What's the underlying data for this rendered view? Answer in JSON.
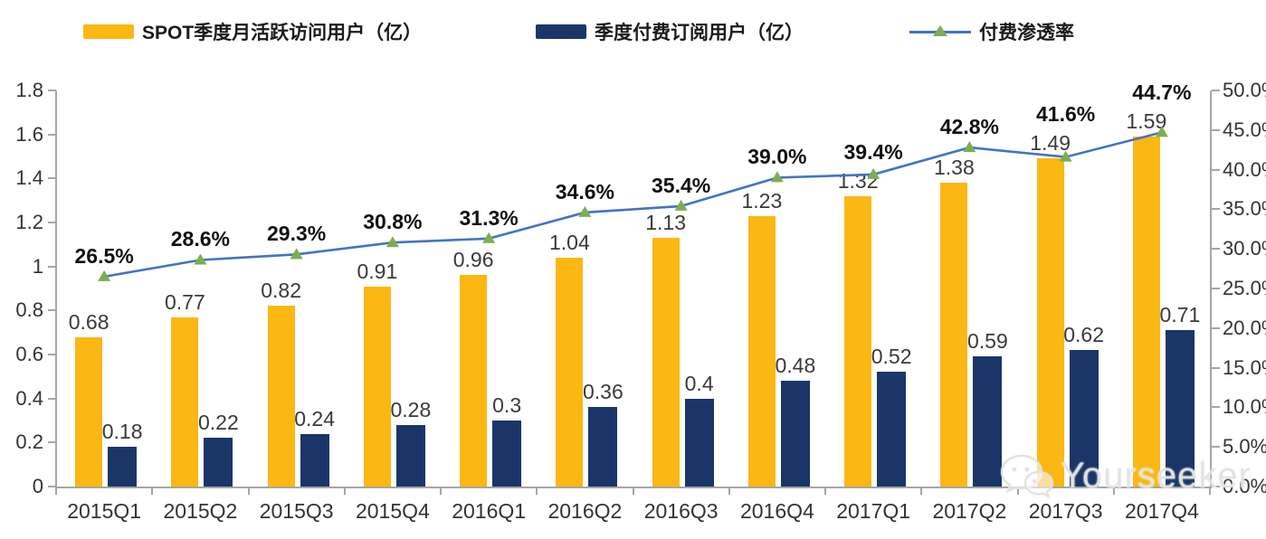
{
  "legend": {
    "items": [
      {
        "label": "SPOT季度月活跃访问用户（亿）",
        "type": "bar",
        "color": "#FBB713"
      },
      {
        "label": "季度付费订阅用户（亿）",
        "type": "bar",
        "color": "#1A3668"
      },
      {
        "label": "付费渗透率",
        "type": "line",
        "color": "#4472C4",
        "marker_color": "#7CAE4F"
      }
    ]
  },
  "watermark": {
    "icon": "wechat-icon",
    "text": "Yourseeker"
  },
  "colors": {
    "axis": "#A6A6A6",
    "value_label_text": "#3A3A3A",
    "percent_label_text": "#111111",
    "mau_bar": "#FBB713",
    "subs_bar": "#1A3668",
    "penetration_line": "#4472C4",
    "penetration_marker": "#7CAE4F"
  },
  "chart_data": {
    "type": "bar",
    "subtype": "grouped bars with secondary-axis line",
    "categories": [
      "2015Q1",
      "2015Q2",
      "2015Q3",
      "2015Q4",
      "2016Q1",
      "2016Q2",
      "2016Q3",
      "2016Q4",
      "2017Q1",
      "2017Q2",
      "2017Q3",
      "2017Q4"
    ],
    "series": [
      {
        "name": "SPOT季度月活跃访问用户（亿）",
        "type": "bar",
        "axis": "left",
        "color": "#FBB713",
        "values": [
          0.68,
          0.77,
          0.82,
          0.91,
          0.96,
          1.04,
          1.13,
          1.23,
          1.32,
          1.38,
          1.49,
          1.59
        ],
        "labels": [
          "0.68",
          "0.77",
          "0.82",
          "0.91",
          "0.96",
          "1.04",
          "1.13",
          "1.23",
          "1.32",
          "1.38",
          "1.49",
          "1.59"
        ]
      },
      {
        "name": "季度付费订阅用户（亿）",
        "type": "bar",
        "axis": "left",
        "color": "#1A3668",
        "values": [
          0.18,
          0.22,
          0.24,
          0.28,
          0.3,
          0.36,
          0.4,
          0.48,
          0.52,
          0.59,
          0.62,
          0.71
        ],
        "labels": [
          "0.18",
          "0.22",
          "0.24",
          "0.28",
          "0.3",
          "0.36",
          "0.4",
          "0.48",
          "0.52",
          "0.59",
          "0.62",
          "0.71"
        ]
      },
      {
        "name": "付费渗透率",
        "type": "line",
        "axis": "right",
        "color": "#4472C4",
        "marker": "triangle",
        "marker_color": "#7CAE4F",
        "values": [
          26.5,
          28.6,
          29.3,
          30.8,
          31.3,
          34.6,
          35.4,
          39.0,
          39.4,
          42.8,
          41.6,
          44.7
        ],
        "labels": [
          "26.5%",
          "28.6%",
          "29.3%",
          "30.8%",
          "31.3%",
          "34.6%",
          "35.4%",
          "39.0%",
          "39.4%",
          "42.8%",
          "41.6%",
          "44.7%"
        ]
      }
    ],
    "axes": {
      "left": {
        "min": 0,
        "max": 1.8,
        "ticks": [
          "0",
          "0.2",
          "0.4",
          "0.6",
          "0.8",
          "1",
          "1.2",
          "1.4",
          "1.6",
          "1.8"
        ]
      },
      "right": {
        "min": 0,
        "max": 50,
        "ticks": [
          "0.0%",
          "5.0%",
          "10.0%",
          "15.0%",
          "20.0%",
          "25.0%",
          "30.0%",
          "35.0%",
          "40.0%",
          "45.0%",
          "50.0%"
        ]
      }
    },
    "grid": false,
    "legend_position": "top",
    "title": ""
  }
}
